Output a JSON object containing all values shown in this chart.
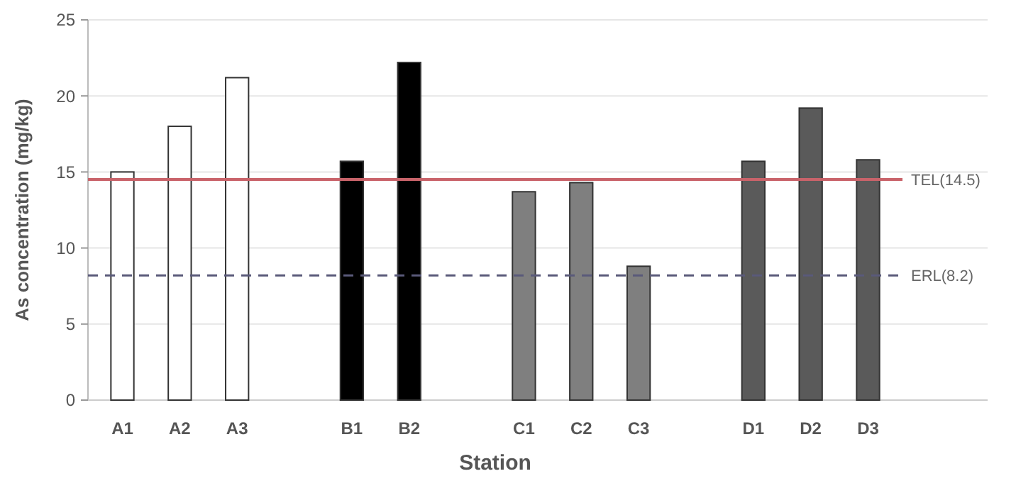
{
  "chart_data": {
    "type": "bar",
    "xlabel": "Station",
    "ylabel": "As concentration (mg/kg)",
    "categories": [
      "A1",
      "A2",
      "A3",
      null,
      "B1",
      "B2",
      null,
      "C1",
      "C2",
      "C3",
      null,
      "D1",
      "D2",
      "D3"
    ],
    "values": [
      15.0,
      18.0,
      21.2,
      null,
      15.7,
      22.2,
      null,
      13.7,
      14.3,
      8.8,
      null,
      15.7,
      19.2,
      15.8
    ],
    "colors": [
      "#ffffff",
      "#ffffff",
      "#ffffff",
      null,
      "#000000",
      "#000000",
      null,
      "#7f7f7f",
      "#7f7f7f",
      "#7f7f7f",
      null,
      "#5a5a5a",
      "#5a5a5a",
      "#5a5a5a"
    ],
    "ylim": [
      0,
      25
    ],
    "yticks": [
      0,
      5,
      10,
      15,
      20,
      25
    ],
    "grid": "y",
    "ref_lines": [
      {
        "axis": "y",
        "value": 14.5,
        "label": "TEL(14.5)",
        "color": "#c9636a",
        "line_style": "solid"
      },
      {
        "axis": "y",
        "value": 8.2,
        "label": "ERL(8.2)",
        "color": "#5a5a7a",
        "line_style": "dashed"
      }
    ]
  }
}
